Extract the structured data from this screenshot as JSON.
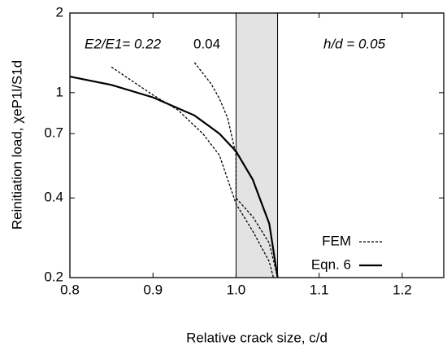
{
  "chart_data": {
    "type": "line",
    "xlabel": "Relative crack size, c/d",
    "ylabel": "Reinitiation load, χeP1l/S1d",
    "xlim": [
      0.8,
      1.25
    ],
    "xticks": [
      0.8,
      0.9,
      {
        "value": 1,
        "label": "1.0"
      },
      1.1,
      1.2
    ],
    "ylim": [
      0.2,
      2
    ],
    "yticks": [
      0.2,
      0.4,
      0.7,
      1,
      2
    ],
    "log_y": true,
    "grid": false,
    "shaded_region": [
      1.0,
      1.05
    ],
    "annotations": [
      "E2/E1= 0.22",
      "0.04",
      "h/d = 0.05"
    ],
    "legend": "lower right",
    "series": [
      {
        "name": "FEM",
        "color": "#000000",
        "dash": true,
        "x": [
          0.85,
          0.88,
          0.9,
          0.93,
          0.96,
          0.98,
          1.0,
          1.02,
          1.04,
          1.045
        ],
        "values": [
          1.25,
          1.08,
          0.98,
          0.86,
          0.7,
          0.58,
          0.38,
          0.3,
          0.23,
          0.2
        ]
      },
      {
        "name": "FEM",
        "color": "#000000",
        "dash": true,
        "x": [
          0.95,
          0.97,
          0.98,
          0.99,
          1.0,
          1.0,
          1.02,
          1.04,
          1.05
        ],
        "values": [
          1.3,
          1.08,
          0.95,
          0.8,
          0.58,
          0.4,
          0.34,
          0.27,
          0.2
        ]
      },
      {
        "name": "Eqn. 6",
        "color": "#000000",
        "dash": false,
        "x": [
          0.8,
          0.85,
          0.9,
          0.95,
          0.98,
          1.0,
          1.02,
          1.04,
          1.05
        ],
        "values": [
          1.15,
          1.07,
          0.96,
          0.82,
          0.7,
          0.6,
          0.47,
          0.32,
          0.2
        ]
      }
    ]
  }
}
